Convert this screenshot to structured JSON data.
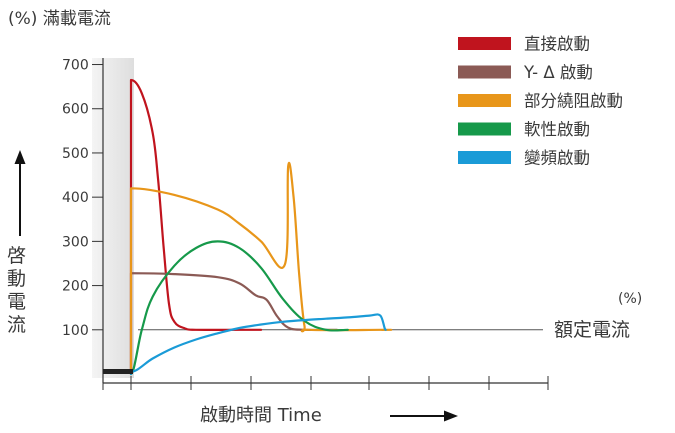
{
  "chart_data": {
    "type": "line",
    "title": "(%) 滿載電流",
    "ylabel": "啓動電流",
    "xlabel": "啟動時間 Time",
    "ylim": [
      0,
      700
    ],
    "yticks": [
      100,
      200,
      300,
      400,
      500,
      600,
      700
    ],
    "grid": false,
    "legend_position": "top-right",
    "reference_line": {
      "value": 100,
      "label_unit": "(%)",
      "label": "額定電流"
    },
    "series": [
      {
        "name": "直接啟動",
        "color": "#c0141e",
        "points": [
          [
            0,
            0
          ],
          [
            0,
            665
          ],
          [
            1.0,
            635
          ],
          [
            2.0,
            545
          ],
          [
            2.5,
            440
          ],
          [
            3.0,
            290
          ],
          [
            3.5,
            160
          ],
          [
            4.0,
            118
          ],
          [
            5.0,
            103
          ],
          [
            6.0,
            100
          ],
          [
            10.0,
            100
          ],
          [
            12.0,
            100
          ]
        ]
      },
      {
        "name": "Y- Δ 啟動",
        "color": "#8b5a55",
        "points": [
          [
            0,
            0
          ],
          [
            0,
            228
          ],
          [
            4.0,
            226
          ],
          [
            8.0,
            219
          ],
          [
            10.0,
            205
          ],
          [
            11.5,
            178
          ],
          [
            12.5,
            168
          ],
          [
            13.5,
            130
          ],
          [
            14.5,
            105
          ],
          [
            16.0,
            100
          ],
          [
            19.0,
            100
          ]
        ]
      },
      {
        "name": "部分繞阻啟動",
        "color": "#e8961a",
        "points": [
          [
            0,
            0
          ],
          [
            0,
            420
          ],
          [
            4.0,
            405
          ],
          [
            8.0,
            372
          ],
          [
            10.0,
            340
          ],
          [
            12.0,
            300
          ],
          [
            14.2,
            248
          ],
          [
            14.5,
            470
          ],
          [
            15.0,
            400
          ],
          [
            15.5,
            230
          ],
          [
            16.0,
            110
          ],
          [
            16.5,
            100
          ],
          [
            24.0,
            100
          ]
        ]
      },
      {
        "name": "軟性啟動",
        "color": "#16994a",
        "points": [
          [
            0,
            0
          ],
          [
            1.0,
            100
          ],
          [
            2.0,
            175
          ],
          [
            4.0,
            245
          ],
          [
            6.0,
            285
          ],
          [
            8.0,
            300
          ],
          [
            10.0,
            285
          ],
          [
            12.0,
            240
          ],
          [
            14.0,
            170
          ],
          [
            16.0,
            120
          ],
          [
            18.0,
            100
          ],
          [
            20.0,
            100
          ]
        ]
      },
      {
        "name": "變頻啟動",
        "color": "#1a9bd7",
        "points": [
          [
            0,
            0
          ],
          [
            0,
            5
          ],
          [
            2.0,
            35
          ],
          [
            4.0,
            60
          ],
          [
            6.0,
            78
          ],
          [
            8.0,
            92
          ],
          [
            10.0,
            104
          ],
          [
            12.0,
            112
          ],
          [
            14.0,
            118
          ],
          [
            16.0,
            122
          ],
          [
            18.0,
            125
          ],
          [
            20.0,
            128
          ],
          [
            22.0,
            132
          ],
          [
            23.0,
            132
          ],
          [
            23.5,
            100
          ]
        ]
      }
    ]
  }
}
